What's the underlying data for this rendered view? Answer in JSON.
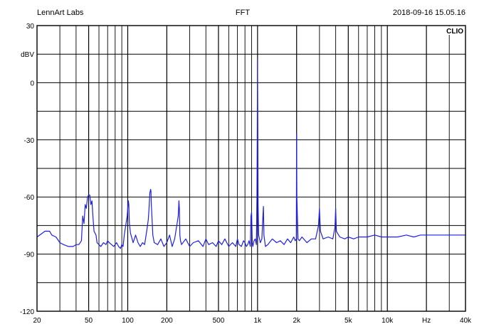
{
  "header": {
    "left": "LennArt Labs",
    "center": "FFT",
    "right": "2018-09-16 15.05.16"
  },
  "brand": "CLIO",
  "chart_data": {
    "type": "line",
    "title": "FFT",
    "xlabel": "Hz",
    "ylabel": "dBV",
    "xscale": "log",
    "xlim": [
      20,
      40000
    ],
    "ylim": [
      -120,
      30
    ],
    "grid": true,
    "x_tick_labels": [
      "20",
      "50",
      "100",
      "200",
      "500",
      "1k",
      "2k",
      "5k",
      "10k",
      "Hz",
      "40k"
    ],
    "x_tick_values": [
      20,
      50,
      100,
      200,
      500,
      1000,
      2000,
      5000,
      10000,
      20000,
      40000
    ],
    "y_tick_labels": [
      "30",
      "dBV",
      "0",
      "-30",
      "-60",
      "-90",
      "-120"
    ],
    "y_tick_values": [
      30,
      15,
      0,
      -30,
      -60,
      -90,
      -120
    ],
    "series_color": "#1f1fe6",
    "series": [
      {
        "x": [
          20,
          22,
          23,
          25,
          26,
          28,
          30,
          32,
          35,
          38,
          40,
          42,
          44,
          45,
          46,
          47,
          48,
          49,
          50,
          51,
          52,
          53,
          54,
          55,
          57,
          58,
          60,
          62,
          65,
          68,
          70,
          72,
          75,
          78,
          80,
          82,
          85,
          88,
          90,
          92,
          94,
          96,
          98,
          99,
          100,
          101,
          102,
          103,
          105,
          108,
          110,
          115,
          120,
          125,
          130,
          135,
          140,
          144,
          146,
          148,
          150,
          151,
          152,
          154,
          156,
          160,
          170,
          180,
          190,
          200,
          210,
          220,
          230,
          240,
          245,
          248,
          250,
          252,
          255,
          260,
          280,
          300,
          320,
          350,
          380,
          400,
          420,
          450,
          480,
          500,
          530,
          560,
          600,
          640,
          680,
          700,
          720,
          750,
          780,
          800,
          820,
          840,
          860,
          880,
          890,
          900,
          910,
          920,
          940,
          960,
          980,
          990,
          995,
          1000,
          1005,
          1010,
          1020,
          1050,
          1080,
          1100,
          1110,
          1120,
          1150,
          1200,
          1300,
          1400,
          1500,
          1600,
          1700,
          1800,
          1900,
          1950,
          1990,
          2000,
          2010,
          2050,
          2100,
          2200,
          2400,
          2600,
          2800,
          2950,
          3000,
          3050,
          3200,
          3500,
          3800,
          3950,
          4000,
          4050,
          4300,
          4700,
          5000,
          5500,
          6000,
          7000,
          8000,
          9000,
          10000,
          12000,
          14000,
          16000,
          18000,
          20000,
          23000,
          26000,
          30000,
          35000,
          40000
        ],
        "y": [
          -81,
          -79,
          -78,
          -78,
          -80,
          -81,
          -84,
          -85,
          -86,
          -86,
          -85,
          -85,
          -83,
          -70,
          -74,
          -64,
          -66,
          -60,
          -59,
          -59,
          -64,
          -62,
          -71,
          -78,
          -80,
          -84,
          -85,
          -86,
          -84,
          -85,
          -83,
          -84,
          -85,
          -86,
          -85,
          -84,
          -86,
          -87,
          -85,
          -86,
          -80,
          -76,
          -72,
          -70,
          -66,
          -62,
          -64,
          -74,
          -79,
          -82,
          -84,
          -80,
          -84,
          -86,
          -84,
          -85,
          -78,
          -72,
          -66,
          -58,
          -56,
          -57,
          -64,
          -72,
          -80,
          -84,
          -85,
          -82,
          -86,
          -84,
          -80,
          -86,
          -82,
          -74,
          -70,
          -62,
          -66,
          -80,
          -83,
          -85,
          -82,
          -86,
          -84,
          -83,
          -86,
          -82,
          -85,
          -84,
          -86,
          -83,
          -85,
          -82,
          -86,
          -84,
          -86,
          -82,
          -85,
          -86,
          -83,
          -84,
          -86,
          -85,
          -83,
          -86,
          -70,
          -68,
          -84,
          -86,
          -83,
          -82,
          -85,
          -60,
          -30,
          12,
          -20,
          -64,
          -80,
          -84,
          -82,
          -70,
          -65,
          -80,
          -86,
          -85,
          -82,
          -84,
          -83,
          -85,
          -82,
          -84,
          -81,
          -83,
          -82,
          -27,
          -60,
          -82,
          -83,
          -81,
          -84,
          -82,
          -82,
          -75,
          -66,
          -78,
          -82,
          -81,
          -82,
          -76,
          -66,
          -78,
          -81,
          -82,
          -81,
          -82,
          -81,
          -81,
          -80,
          -81,
          -81,
          -81,
          -80,
          -81,
          -80,
          -80,
          -80,
          -80,
          -80,
          -80,
          -80
        ]
      }
    ]
  }
}
